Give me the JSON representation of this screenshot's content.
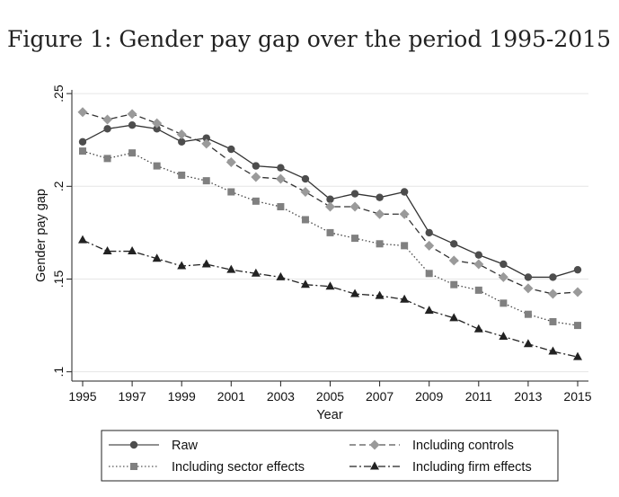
{
  "chart_data": {
    "type": "line",
    "title": "Figure 1: Gender pay gap over the period 1995-2015",
    "xlabel": "Year",
    "ylabel": "Gender pay gap",
    "x": [
      1995,
      1996,
      1997,
      1998,
      1999,
      2000,
      2001,
      2002,
      2003,
      2004,
      2005,
      2006,
      2007,
      2008,
      2009,
      2010,
      2011,
      2012,
      2013,
      2014,
      2015
    ],
    "xlim": [
      1995,
      2015
    ],
    "ylim": [
      0.095,
      0.252
    ],
    "x_ticks": [
      1995,
      1997,
      1999,
      2001,
      2003,
      2005,
      2007,
      2009,
      2011,
      2013,
      2015
    ],
    "x_tick_labels": [
      "1995",
      "1997",
      "1999",
      "2001",
      "2003",
      "2005",
      "2007",
      "2009",
      "2011",
      "2013",
      "2015"
    ],
    "y_ticks": [
      0.1,
      0.15,
      0.2,
      0.25
    ],
    "y_tick_labels": [
      ".1",
      ".15",
      ".2",
      ".25"
    ],
    "grid": true,
    "legend_position": "bottom",
    "series": [
      {
        "name": "Raw",
        "style": "solid",
        "marker": "circle",
        "color": "#4d4d4d",
        "values": [
          0.224,
          0.231,
          0.233,
          0.231,
          0.224,
          0.226,
          0.22,
          0.211,
          0.21,
          0.204,
          0.193,
          0.196,
          0.194,
          0.197,
          0.175,
          0.169,
          0.163,
          0.158,
          0.151,
          0.151,
          0.155
        ]
      },
      {
        "name": "Including controls",
        "style": "dashed",
        "marker": "diamond",
        "color": "#9a9a9a",
        "values": [
          0.24,
          0.236,
          0.239,
          0.234,
          0.228,
          0.223,
          0.213,
          0.205,
          0.204,
          0.197,
          0.189,
          0.189,
          0.185,
          0.185,
          0.168,
          0.16,
          0.158,
          0.151,
          0.145,
          0.142,
          0.143
        ]
      },
      {
        "name": "Including sector effects",
        "style": "dotted",
        "marker": "square",
        "color": "#808080",
        "values": [
          0.219,
          0.215,
          0.218,
          0.211,
          0.206,
          0.203,
          0.197,
          0.192,
          0.189,
          0.182,
          0.175,
          0.172,
          0.169,
          0.168,
          0.153,
          0.147,
          0.144,
          0.137,
          0.131,
          0.127,
          0.125
        ]
      },
      {
        "name": "Including firm effects",
        "style": "dashdot",
        "marker": "triangle",
        "color": "#222222",
        "values": [
          0.171,
          0.165,
          0.165,
          0.161,
          0.157,
          0.158,
          0.155,
          0.153,
          0.151,
          0.147,
          0.146,
          0.142,
          0.141,
          0.139,
          0.133,
          0.129,
          0.123,
          0.119,
          0.115,
          0.111,
          0.108
        ]
      }
    ]
  }
}
